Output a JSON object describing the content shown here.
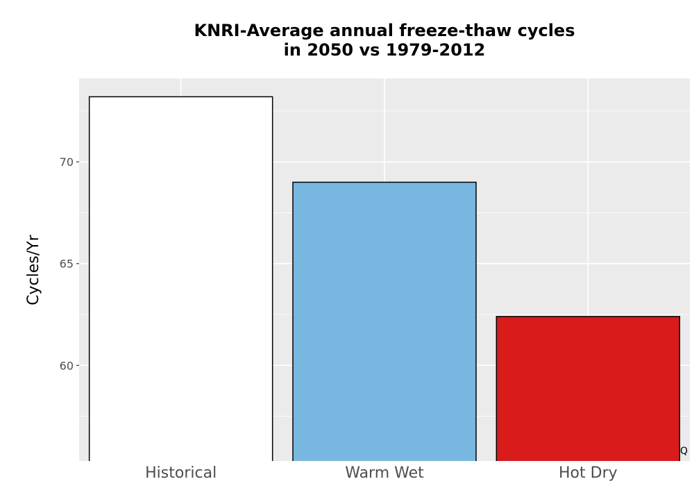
{
  "chart_data": {
    "type": "bar",
    "title_lines": [
      "KNRI-Average annual freeze-thaw cycles",
      "in 2050 vs 1979-2012"
    ],
    "xlabel": "",
    "ylabel": "Cycles/Yr",
    "categories": [
      "Historical",
      "Warm Wet",
      "Hot Dry"
    ],
    "values": [
      73.2,
      69.0,
      62.4
    ],
    "bar_colors": [
      "#ffffff",
      "#78b8e0",
      "#d91b1c"
    ],
    "bar_outline": "#000000",
    "yticks": [
      60,
      65,
      70
    ],
    "ylim": [
      55.3,
      74.1
    ],
    "grid": true,
    "panel_background": "#ebebeb",
    "grid_color": "#ffffff",
    "corner_mark": "Q"
  }
}
